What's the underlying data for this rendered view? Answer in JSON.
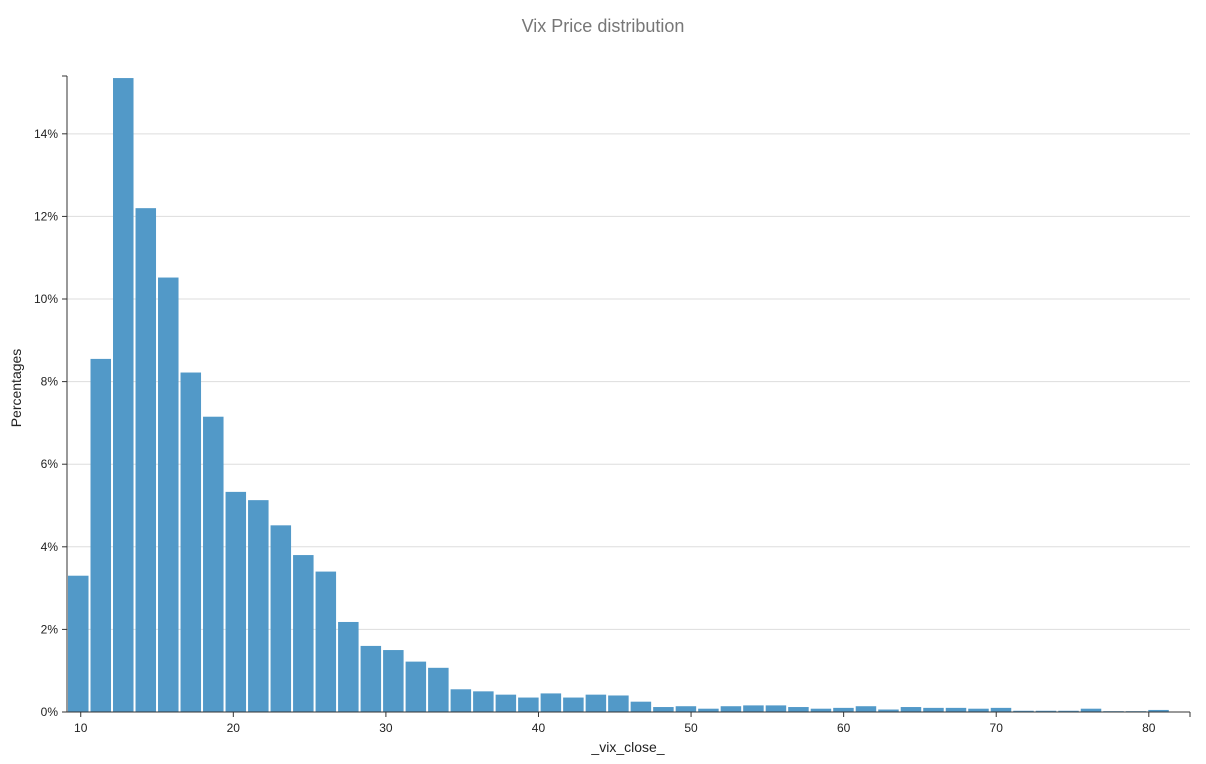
{
  "colors": {
    "bar": "#5299c8",
    "grid": "#dddddd",
    "axis": "#333333"
  },
  "chart_data": {
    "type": "bar",
    "title": "Vix Price distribution",
    "xlabel": "_vix_close_",
    "ylabel": "Percentages",
    "xlim": [
      9.1,
      82.7
    ],
    "ylim": [
      0,
      15.4
    ],
    "bin_width": 1.475,
    "grid": "horizontal",
    "x_ticks": [
      10,
      20,
      30,
      40,
      50,
      60,
      70,
      80
    ],
    "y_ticks": [
      0,
      2,
      4,
      6,
      8,
      10,
      12,
      14
    ],
    "y_tick_labels": [
      "0%",
      "2%",
      "4%",
      "6%",
      "8%",
      "10%",
      "12%",
      "14%"
    ],
    "bins_start": [
      9.1,
      10.575,
      12.05,
      13.525,
      15.0,
      16.475,
      17.95,
      19.425,
      20.9,
      22.375,
      23.85,
      25.325,
      26.8,
      28.275,
      29.75,
      31.225,
      32.7,
      34.175,
      35.65,
      37.125,
      38.6,
      40.075,
      41.55,
      43.025,
      44.5,
      45.975,
      47.45,
      48.925,
      50.4,
      51.875,
      53.35,
      54.825,
      56.3,
      57.775,
      59.25,
      60.725,
      62.2,
      63.675,
      65.15,
      66.625,
      68.1,
      69.575,
      71.05,
      72.525,
      74.0,
      75.475,
      76.95,
      78.425,
      79.9,
      81.375
    ],
    "values": [
      3.3,
      8.55,
      15.35,
      12.2,
      10.52,
      8.22,
      7.15,
      5.33,
      5.13,
      4.52,
      3.8,
      3.4,
      2.18,
      1.6,
      1.5,
      1.22,
      1.07,
      0.55,
      0.5,
      0.42,
      0.35,
      0.45,
      0.35,
      0.42,
      0.4,
      0.25,
      0.12,
      0.14,
      0.08,
      0.14,
      0.16,
      0.16,
      0.12,
      0.08,
      0.1,
      0.14,
      0.06,
      0.12,
      0.1,
      0.1,
      0.08,
      0.1,
      0.03,
      0.03,
      0.03,
      0.08,
      0.02,
      0.02,
      0.05,
      0.0
    ]
  }
}
